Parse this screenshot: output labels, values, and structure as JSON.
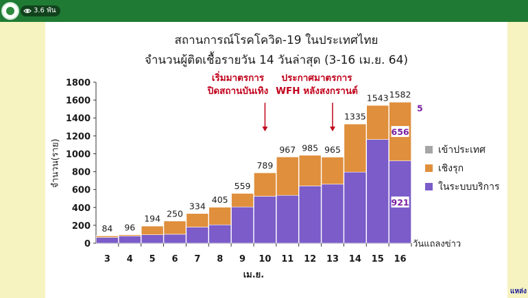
{
  "header": {
    "views_count": "3.6 พัน",
    "icons": [
      "logo-icon",
      "eye-icon"
    ]
  },
  "colors": {
    "topbar": "#1f7a34",
    "slide_margin": "#f6f3c0",
    "imported": "#a6a6a6",
    "active": "#e08f3c",
    "system": "#7b5cc9",
    "annotation": "#c0001a"
  },
  "slide": {
    "title_line1": "สถานการณ์โรคโควิด-19 ในประเทศไทย",
    "title_line2": "จำนวนผู้ติดเชื้อรายวัน 14 วันล่าสุด (3-16 เม.ย. 64)",
    "annotation_1": [
      "เริ่มมาตรการ",
      "ปิดสถานบันเทิง"
    ],
    "annotation_2": [
      "ประกาศมาตรการ",
      "WFH หลังสงกรานต์"
    ],
    "source": "แหล่ง"
  },
  "chart_data": {
    "type": "bar",
    "stacked": true,
    "title": "สถานการณ์โรคโควิด-19 ในประเทศไทย จำนวนผู้ติดเชื้อรายวัน 14 วันล่าสุด (3-16 เม.ย. 64)",
    "ylabel": "จำนวน(ราย)",
    "xlabel": "วันแถลงข่าว",
    "xgroup_label": "เม.ย.",
    "categories": [
      "3",
      "4",
      "5",
      "6",
      "7",
      "8",
      "9",
      "10",
      "11",
      "12",
      "13",
      "14",
      "15",
      "16"
    ],
    "ylim": [
      0,
      1800
    ],
    "yticks": [
      0,
      200,
      400,
      600,
      800,
      1000,
      1200,
      1400,
      1600,
      1800
    ],
    "totals": [
      84,
      96,
      194,
      250,
      334,
      405,
      559,
      789,
      967,
      985,
      965,
      1335,
      1543,
      1582
    ],
    "series": [
      {
        "name": "ในระบบบริการ",
        "values": [
          65,
          80,
          95,
          100,
          180,
          205,
          405,
          525,
          535,
          640,
          660,
          795,
          1160,
          921
        ]
      },
      {
        "name": "เชิงรุก",
        "values": [
          17,
          14,
          97,
          148,
          152,
          198,
          152,
          262,
          430,
          343,
          303,
          538,
          381,
          656
        ]
      },
      {
        "name": "เข้าประเทศ",
        "values": [
          2,
          2,
          2,
          2,
          2,
          2,
          2,
          2,
          2,
          2,
          2,
          2,
          2,
          5
        ]
      }
    ],
    "inner_labels": {
      "system": "921",
      "active": "656",
      "imported": "5"
    },
    "legend": "right",
    "grid": false
  }
}
